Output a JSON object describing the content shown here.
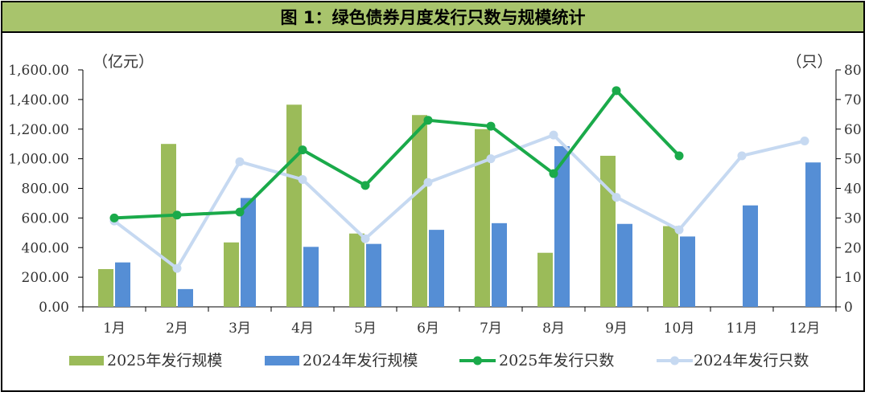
{
  "chart_data": {
    "type": "bar",
    "title": "图 1：绿色债券月度发行只数与规模统计",
    "y_left_unit": "（亿元）",
    "y_right_unit": "（只）",
    "categories": [
      "1月",
      "2月",
      "3月",
      "4月",
      "5月",
      "6月",
      "7月",
      "8月",
      "9月",
      "10月",
      "11月",
      "12月"
    ],
    "y_left_ticks": [
      "0.00",
      "200.00",
      "400.00",
      "600.00",
      "800.00",
      "1,000.00",
      "1,200.00",
      "1,400.00",
      "1,600.00"
    ],
    "y_right_ticks": [
      "0",
      "10",
      "20",
      "30",
      "40",
      "50",
      "60",
      "70",
      "80"
    ],
    "ylim_left": [
      0,
      1600
    ],
    "ylim_right": [
      0,
      80
    ],
    "bar_series": [
      {
        "name": "2025年发行规模",
        "color": "#9bbb59",
        "values": [
          255,
          1100,
          435,
          1365,
          495,
          1295,
          1200,
          365,
          1020,
          545,
          null,
          null
        ]
      },
      {
        "name": "2024年发行规模",
        "color": "#558ed5",
        "values": [
          300,
          120,
          735,
          405,
          425,
          520,
          565,
          1085,
          560,
          475,
          685,
          975
        ]
      }
    ],
    "line_series": [
      {
        "name": "2025年发行只数",
        "color": "#1aaa4a",
        "values": [
          30,
          31,
          32,
          53,
          41,
          63,
          61,
          45,
          73,
          51,
          null,
          null
        ]
      },
      {
        "name": "2024年发行只数",
        "color": "#c6d9f1",
        "values": [
          29,
          13,
          49,
          43,
          23,
          42,
          50,
          58,
          37,
          26,
          51,
          56
        ]
      }
    ],
    "grid": false,
    "legend": "bottom"
  }
}
